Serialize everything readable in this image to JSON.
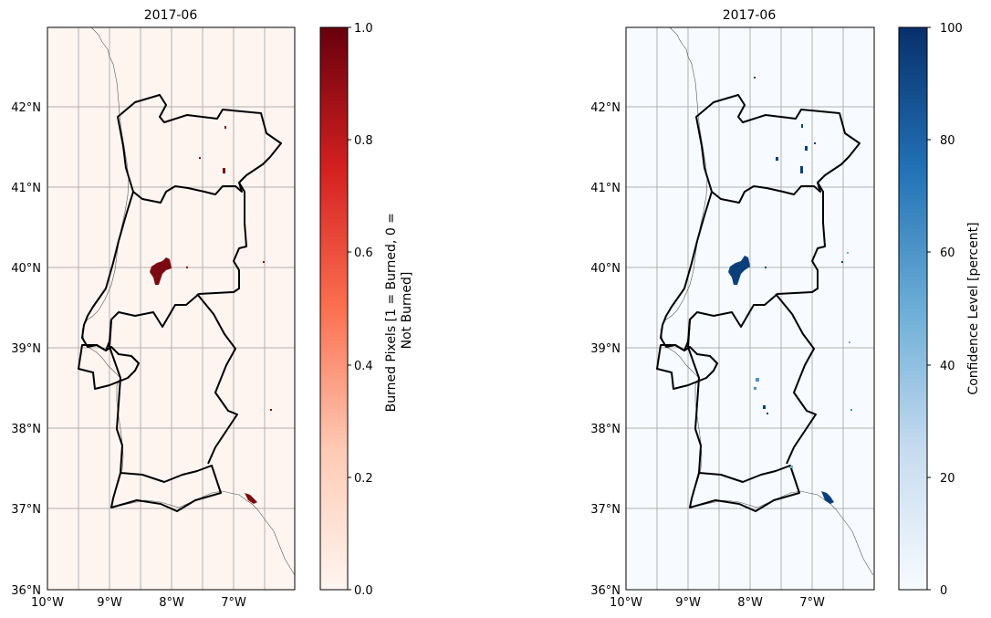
{
  "panels": [
    {
      "id": "burned",
      "title": "2017-06",
      "colorbar": {
        "label_lines": [
          "Burned Pixels [1 = Burned, 0 =",
          "Not Burned]"
        ],
        "ticks": [
          "0.0",
          "0.2",
          "0.4",
          "0.6",
          "0.8",
          "1.0"
        ],
        "colormap": "Reds",
        "stops": [
          "#fff5f0",
          "#fdcab4",
          "#fb7050",
          "#d42020",
          "#67000d"
        ]
      },
      "background": "#fff5f0",
      "burn_color": "#7a0a12"
    },
    {
      "id": "confidence",
      "title": "2017-06",
      "colorbar": {
        "label_lines": [
          "Confidence Level [percent]"
        ],
        "ticks": [
          "0",
          "20",
          "40",
          "60",
          "80",
          "100"
        ],
        "colormap": "Blues",
        "stops": [
          "#f7fbff",
          "#c6dbef",
          "#6baed6",
          "#2171b5",
          "#08306b"
        ]
      },
      "background": "#f7fbff",
      "burn_color": "#0b3f7a"
    }
  ],
  "lat_ticks": [
    "36°N",
    "37°N",
    "38°N",
    "39°N",
    "40°N",
    "41°N",
    "42°N"
  ],
  "lon_ticks": [
    "10°W",
    "9°W",
    "8°W",
    "7°W"
  ],
  "map_extent": {
    "lon": [
      -10,
      -6
    ],
    "lat": [
      36,
      43
    ]
  },
  "gridlines": true,
  "colors": {
    "boundary": "#000000",
    "grid": "#b0b0b0",
    "coastline": "#555555"
  }
}
